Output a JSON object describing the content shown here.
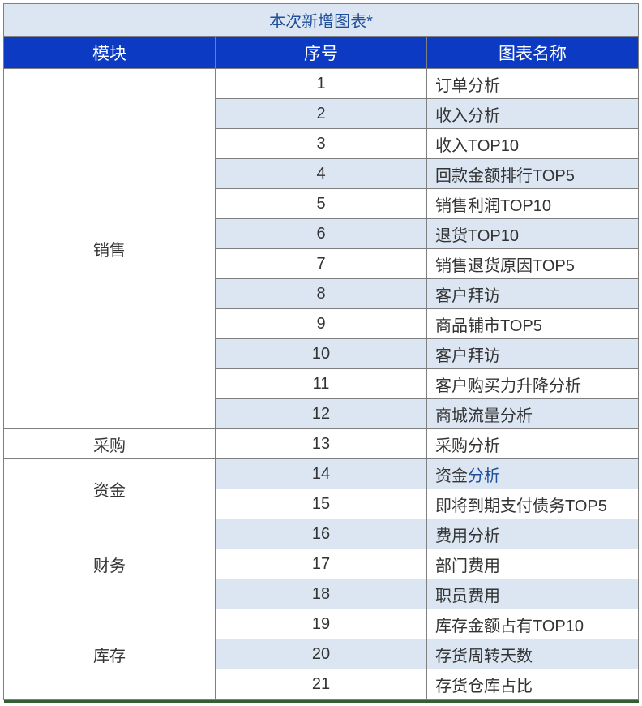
{
  "title": "本次新增图表*",
  "headers": {
    "module": "模块",
    "seq": "序号",
    "name": "图表名称"
  },
  "colors": {
    "title_bg": "#dce6f2",
    "title_text": "#1f4e9b",
    "header_bg": "#0c3ac2",
    "header_text": "#ffffff",
    "row_odd_bg": "#ffffff",
    "row_even_bg": "#dce6f2",
    "border": "#7f7f7f",
    "link": "#1f4e9b",
    "bottom_edge": "#355e35"
  },
  "columns": {
    "module_width": 214,
    "seq_width": 142,
    "name_width": 426
  },
  "modules": {
    "sales": "销售",
    "purchase": "采购",
    "funds": "资金",
    "finance": "财务",
    "inventory": "库存"
  },
  "rows": {
    "r1": {
      "seq": "1",
      "name": "订单分析"
    },
    "r2": {
      "seq": "2",
      "name": "收入分析"
    },
    "r3": {
      "seq": "3",
      "name": "收入TOP10"
    },
    "r4": {
      "seq": "4",
      "name": "回款金额排行TOP5"
    },
    "r5": {
      "seq": "5",
      "name": "销售利润TOP10"
    },
    "r6": {
      "seq": "6",
      "name": "退货TOP10"
    },
    "r7": {
      "seq": "7",
      "name": "销售退货原因TOP5"
    },
    "r8": {
      "seq": "8",
      "name": "客户拜访"
    },
    "r9": {
      "seq": "9",
      "name": "商品铺市TOP5"
    },
    "r10": {
      "seq": "10",
      "name": "客户拜访"
    },
    "r11": {
      "seq": "11",
      "name": "客户购买力升降分析"
    },
    "r12": {
      "seq": "12",
      "name": "商城流量分析"
    },
    "r13": {
      "seq": "13",
      "name": "采购分析"
    },
    "r14": {
      "seq": "14",
      "name_prefix": "资金",
      "name_link": "分析"
    },
    "r15": {
      "seq": "15",
      "name": "即将到期支付债务TOP5"
    },
    "r16": {
      "seq": "16",
      "name": "费用分析"
    },
    "r17": {
      "seq": "17",
      "name": "部门费用"
    },
    "r18": {
      "seq": "18",
      "name": "职员费用"
    },
    "r19": {
      "seq": "19",
      "name": "库存金额占有TOP10"
    },
    "r20": {
      "seq": "20",
      "name": "存货周转天数"
    },
    "r21": {
      "seq": "21",
      "name": "存货仓库占比"
    }
  }
}
